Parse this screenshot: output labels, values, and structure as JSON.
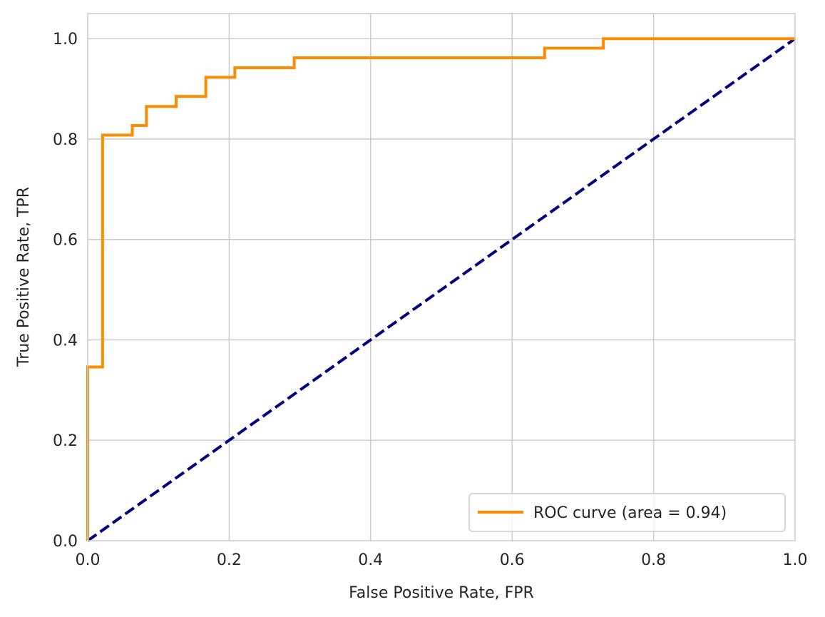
{
  "chart_data": {
    "type": "line",
    "title": "",
    "xlabel": "False Positive Rate, FPR",
    "ylabel": "True Positive Rate, TPR",
    "xlim": [
      0.0,
      1.0
    ],
    "ylim": [
      0.0,
      1.05
    ],
    "xticks": [
      "0.0",
      "0.2",
      "0.4",
      "0.6",
      "0.8",
      "1.0"
    ],
    "yticks": [
      "0.0",
      "0.2",
      "0.4",
      "0.6",
      "0.8",
      "1.0"
    ],
    "grid": true,
    "legend_position": "lower-right",
    "series": [
      {
        "name": "ROC curve (area = 0.94)",
        "style": "solid",
        "color": "#ff8c00",
        "x": [
          0.0,
          0.0,
          0.021,
          0.021,
          0.063,
          0.063,
          0.083,
          0.083,
          0.125,
          0.125,
          0.167,
          0.167,
          0.208,
          0.208,
          0.292,
          0.292,
          0.646,
          0.646,
          0.729,
          0.729,
          1.0
        ],
        "y": [
          0.0,
          0.346,
          0.346,
          0.808,
          0.808,
          0.827,
          0.827,
          0.865,
          0.865,
          0.885,
          0.885,
          0.923,
          0.923,
          0.942,
          0.942,
          0.962,
          0.962,
          0.981,
          0.981,
          1.0,
          1.0
        ]
      },
      {
        "style": "dashed",
        "color": "#000080",
        "x": [
          0.0,
          1.0
        ],
        "y": [
          0.0,
          1.0
        ]
      }
    ]
  },
  "colors": {
    "grid": "#cccccc",
    "frame": "#cccccc",
    "text": "#262626",
    "background": "#ffffff"
  }
}
